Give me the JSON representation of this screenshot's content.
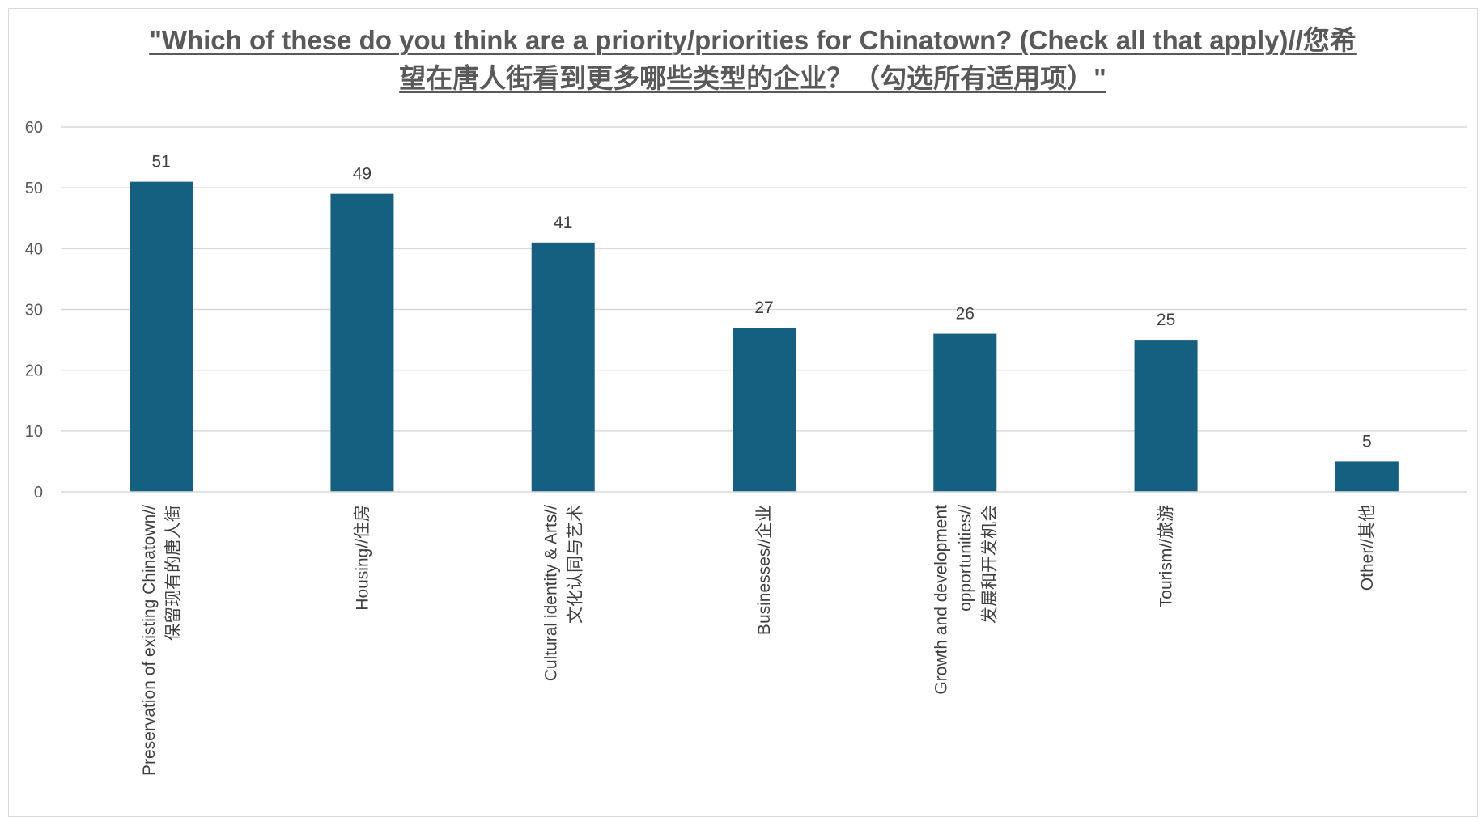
{
  "chart_data": {
    "type": "bar",
    "title": "\"Which of these do you think are a priority/priorities for Chinatown? (Check all that apply)//您希望在唐人街看到更多哪些类型的企业？（勾选所有适用项）\"",
    "categories": [
      [
        "Preservation of existing Chinatown//",
        "保留现有的唐人街"
      ],
      [
        "Housing//住房"
      ],
      [
        "Cultural identity & Arts//",
        "文化认同与艺术"
      ],
      [
        "Businesses//企业"
      ],
      [
        "Growth and development",
        "opportunities//",
        "发展和开发机会"
      ],
      [
        "Tourism//旅游"
      ],
      [
        "Other//其他"
      ]
    ],
    "values": [
      51,
      49,
      41,
      27,
      26,
      25,
      5
    ],
    "data_labels": [
      "51",
      "49",
      "41",
      "27",
      "26",
      "25",
      "5"
    ],
    "ylim": [
      0,
      60
    ],
    "yticks": [
      "0",
      "10",
      "20",
      "30",
      "40",
      "50",
      "60"
    ],
    "grid": true,
    "legend": "none",
    "bar_color": "#155f81",
    "xlabel": "",
    "ylabel": ""
  }
}
